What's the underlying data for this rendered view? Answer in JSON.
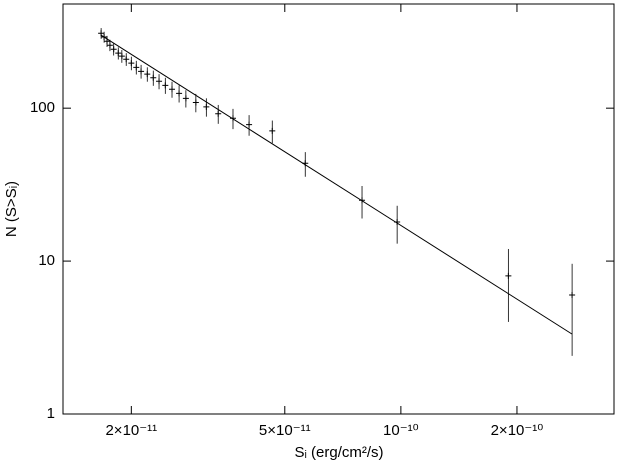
{
  "chart_data": {
    "type": "scatter",
    "xlabel": "Sᵢ (erg/cm²/s)",
    "ylabel": "N (S>Sᵢ)",
    "xscale": "log",
    "yscale": "log",
    "xlim": [
      1.33e-11,
      3.57e-10
    ],
    "ylim": [
      1,
      480
    ],
    "xticks": [
      {
        "value": 2e-11,
        "label": "2×10⁻¹¹"
      },
      {
        "value": 5e-11,
        "label": "5×10⁻¹¹"
      },
      {
        "value": 1e-10,
        "label": "10⁻¹⁰"
      },
      {
        "value": 2e-10,
        "label": "2×10⁻¹⁰"
      }
    ],
    "yticks": [
      1,
      10,
      100
    ],
    "series": [
      {
        "type": "scatter",
        "color": "#000000",
        "x": [
          1.67e-11,
          1.7e-11,
          1.73e-11,
          1.76e-11,
          1.8e-11,
          1.85e-11,
          1.89e-11,
          1.94e-11,
          2e-11,
          2.06e-11,
          2.12e-11,
          2.2e-11,
          2.28e-11,
          2.36e-11,
          2.45e-11,
          2.55e-11,
          2.66e-11,
          2.77e-11,
          2.94e-11,
          3.13e-11,
          3.36e-11,
          3.67e-11,
          4.04e-11,
          4.64e-11,
          5.65e-11,
          7.93e-11,
          9.78e-11,
          1.9e-10,
          2.78e-10
        ],
        "values": [
          309,
          292,
          274,
          258,
          243,
          229,
          219,
          209,
          197,
          185,
          174,
          167,
          158,
          150,
          141,
          133,
          125,
          116,
          109,
          102,
          92,
          86,
          78,
          71,
          43.6,
          25,
          18,
          8,
          6
        ],
        "errors": [
          25,
          24,
          23,
          22,
          22,
          21,
          21,
          20,
          20,
          19,
          18,
          18,
          18,
          17,
          17,
          16,
          16,
          15,
          15,
          14,
          13,
          13,
          12,
          12,
          8,
          6,
          5,
          4,
          3.6
        ]
      },
      {
        "type": "line",
        "color": "#000000",
        "x": [
          1.67e-11,
          2.78e-10
        ],
        "values": [
          300,
          3.33
        ]
      }
    ]
  }
}
